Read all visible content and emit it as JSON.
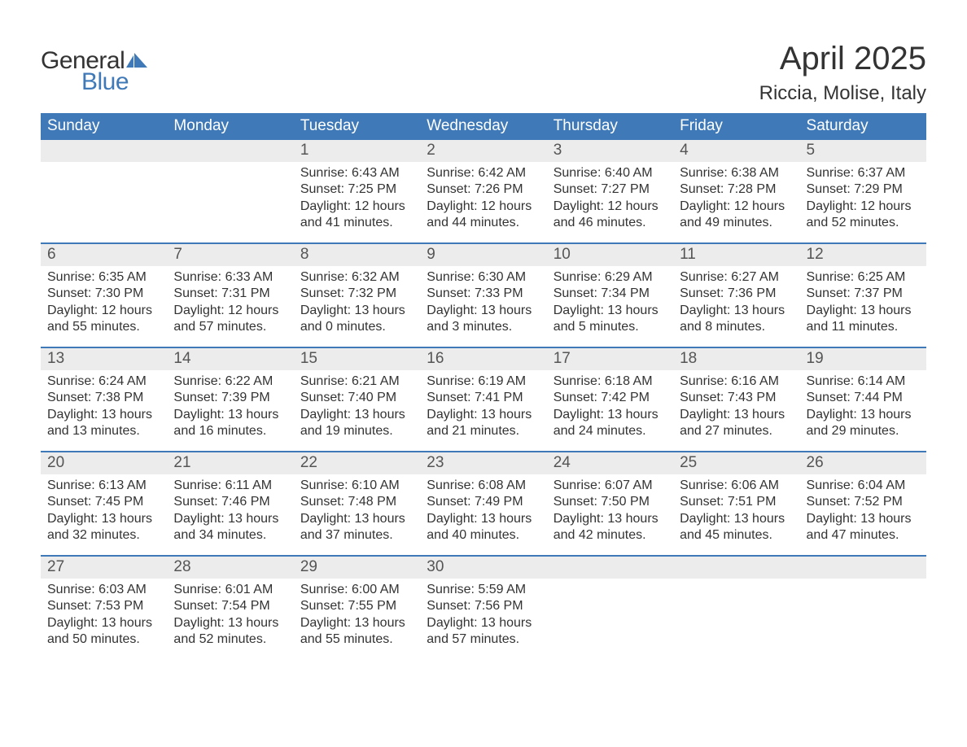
{
  "logo": {
    "text1": "General",
    "text2": "Blue",
    "icon_color": "#3f79b7"
  },
  "title": "April 2025",
  "subtitle": "Riccia, Molise, Italy",
  "header_bg": "#3f79b7",
  "daynum_bg": "#ececec",
  "text_color": "#333333",
  "weekdays": [
    "Sunday",
    "Monday",
    "Tuesday",
    "Wednesday",
    "Thursday",
    "Friday",
    "Saturday"
  ],
  "labels": {
    "sunrise": "Sunrise:",
    "sunset": "Sunset:",
    "daylight": "Daylight:"
  },
  "weeks": [
    [
      null,
      null,
      {
        "n": "1",
        "sr": "6:43 AM",
        "ss": "7:25 PM",
        "dl": "12 hours and 41 minutes."
      },
      {
        "n": "2",
        "sr": "6:42 AM",
        "ss": "7:26 PM",
        "dl": "12 hours and 44 minutes."
      },
      {
        "n": "3",
        "sr": "6:40 AM",
        "ss": "7:27 PM",
        "dl": "12 hours and 46 minutes."
      },
      {
        "n": "4",
        "sr": "6:38 AM",
        "ss": "7:28 PM",
        "dl": "12 hours and 49 minutes."
      },
      {
        "n": "5",
        "sr": "6:37 AM",
        "ss": "7:29 PM",
        "dl": "12 hours and 52 minutes."
      }
    ],
    [
      {
        "n": "6",
        "sr": "6:35 AM",
        "ss": "7:30 PM",
        "dl": "12 hours and 55 minutes."
      },
      {
        "n": "7",
        "sr": "6:33 AM",
        "ss": "7:31 PM",
        "dl": "12 hours and 57 minutes."
      },
      {
        "n": "8",
        "sr": "6:32 AM",
        "ss": "7:32 PM",
        "dl": "13 hours and 0 minutes."
      },
      {
        "n": "9",
        "sr": "6:30 AM",
        "ss": "7:33 PM",
        "dl": "13 hours and 3 minutes."
      },
      {
        "n": "10",
        "sr": "6:29 AM",
        "ss": "7:34 PM",
        "dl": "13 hours and 5 minutes."
      },
      {
        "n": "11",
        "sr": "6:27 AM",
        "ss": "7:36 PM",
        "dl": "13 hours and 8 minutes."
      },
      {
        "n": "12",
        "sr": "6:25 AM",
        "ss": "7:37 PM",
        "dl": "13 hours and 11 minutes."
      }
    ],
    [
      {
        "n": "13",
        "sr": "6:24 AM",
        "ss": "7:38 PM",
        "dl": "13 hours and 13 minutes."
      },
      {
        "n": "14",
        "sr": "6:22 AM",
        "ss": "7:39 PM",
        "dl": "13 hours and 16 minutes."
      },
      {
        "n": "15",
        "sr": "6:21 AM",
        "ss": "7:40 PM",
        "dl": "13 hours and 19 minutes."
      },
      {
        "n": "16",
        "sr": "6:19 AM",
        "ss": "7:41 PM",
        "dl": "13 hours and 21 minutes."
      },
      {
        "n": "17",
        "sr": "6:18 AM",
        "ss": "7:42 PM",
        "dl": "13 hours and 24 minutes."
      },
      {
        "n": "18",
        "sr": "6:16 AM",
        "ss": "7:43 PM",
        "dl": "13 hours and 27 minutes."
      },
      {
        "n": "19",
        "sr": "6:14 AM",
        "ss": "7:44 PM",
        "dl": "13 hours and 29 minutes."
      }
    ],
    [
      {
        "n": "20",
        "sr": "6:13 AM",
        "ss": "7:45 PM",
        "dl": "13 hours and 32 minutes."
      },
      {
        "n": "21",
        "sr": "6:11 AM",
        "ss": "7:46 PM",
        "dl": "13 hours and 34 minutes."
      },
      {
        "n": "22",
        "sr": "6:10 AM",
        "ss": "7:48 PM",
        "dl": "13 hours and 37 minutes."
      },
      {
        "n": "23",
        "sr": "6:08 AM",
        "ss": "7:49 PM",
        "dl": "13 hours and 40 minutes."
      },
      {
        "n": "24",
        "sr": "6:07 AM",
        "ss": "7:50 PM",
        "dl": "13 hours and 42 minutes."
      },
      {
        "n": "25",
        "sr": "6:06 AM",
        "ss": "7:51 PM",
        "dl": "13 hours and 45 minutes."
      },
      {
        "n": "26",
        "sr": "6:04 AM",
        "ss": "7:52 PM",
        "dl": "13 hours and 47 minutes."
      }
    ],
    [
      {
        "n": "27",
        "sr": "6:03 AM",
        "ss": "7:53 PM",
        "dl": "13 hours and 50 minutes."
      },
      {
        "n": "28",
        "sr": "6:01 AM",
        "ss": "7:54 PM",
        "dl": "13 hours and 52 minutes."
      },
      {
        "n": "29",
        "sr": "6:00 AM",
        "ss": "7:55 PM",
        "dl": "13 hours and 55 minutes."
      },
      {
        "n": "30",
        "sr": "5:59 AM",
        "ss": "7:56 PM",
        "dl": "13 hours and 57 minutes."
      },
      null,
      null,
      null
    ]
  ]
}
